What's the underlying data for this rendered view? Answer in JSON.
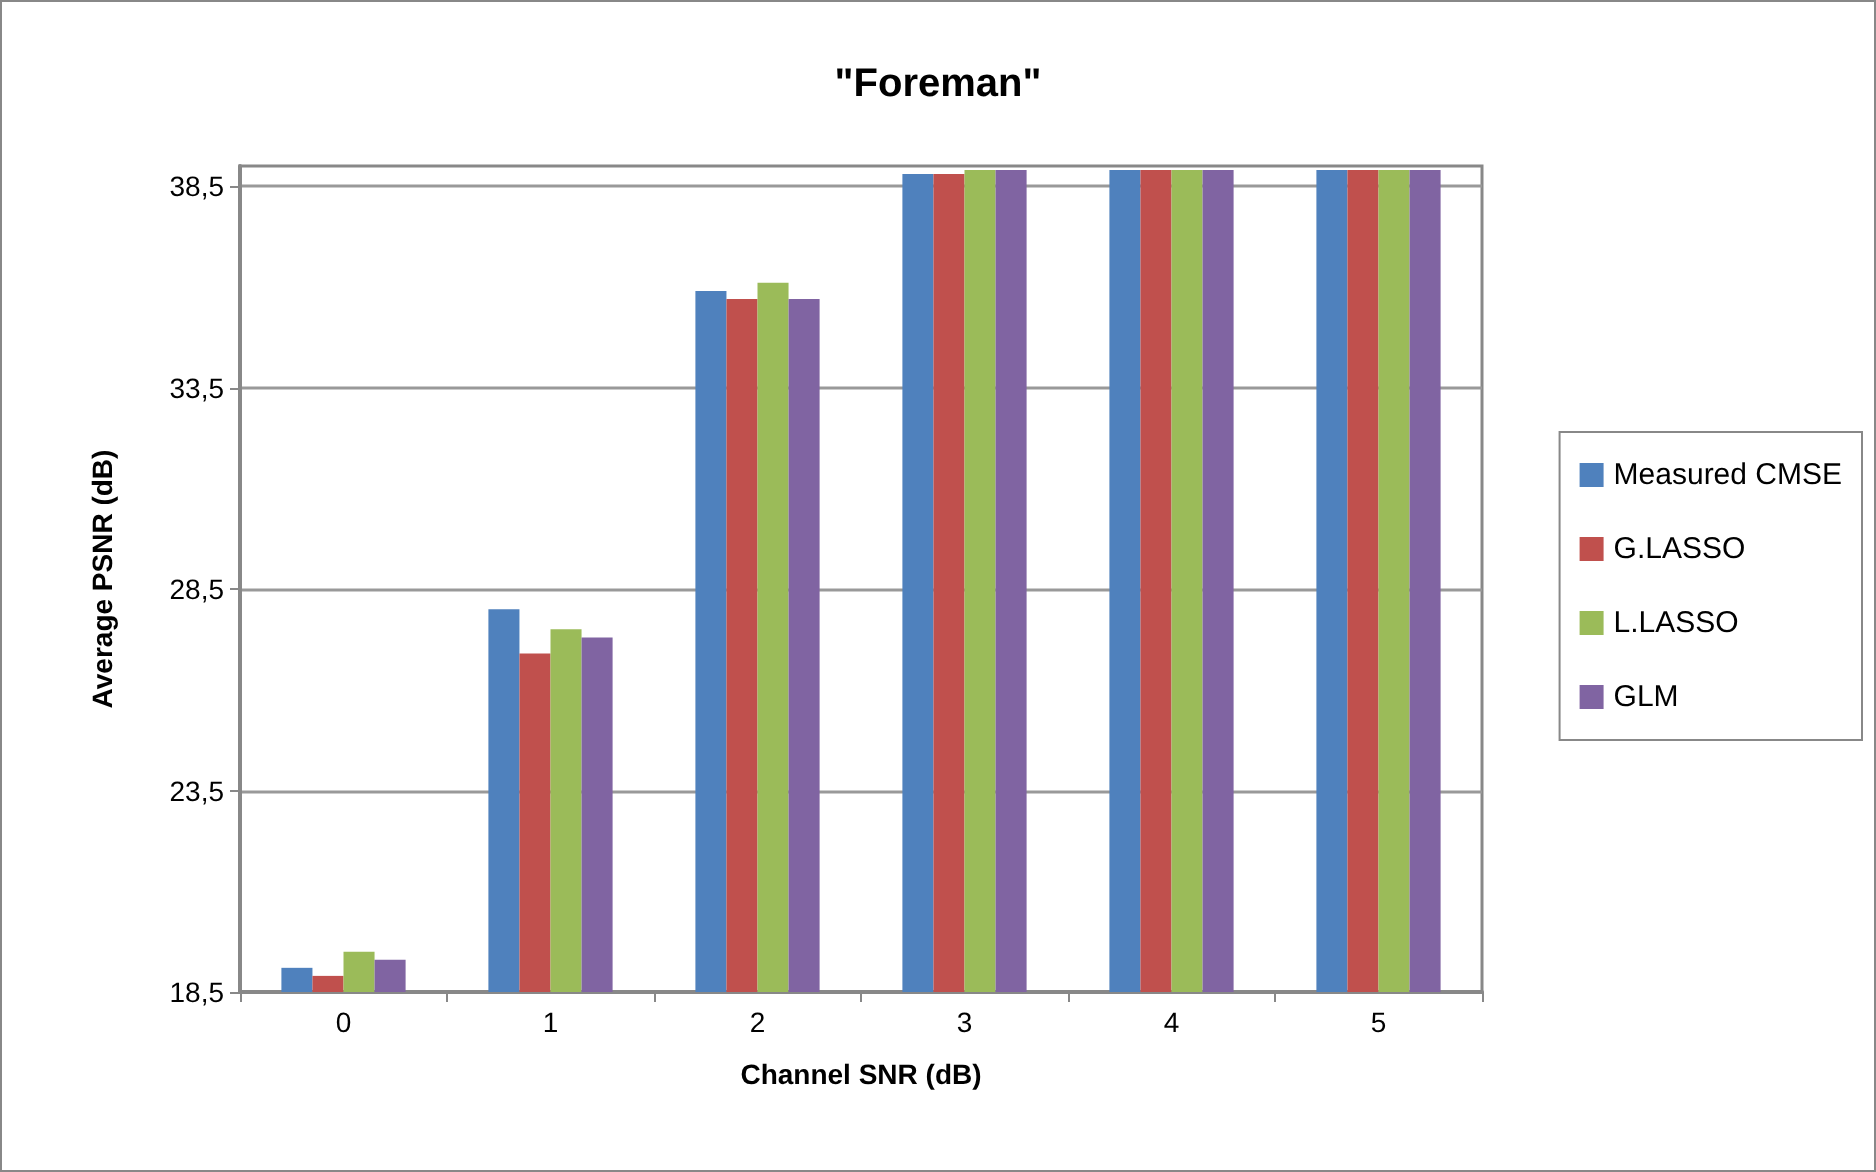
{
  "chart_data": {
    "type": "bar",
    "title": "\"Foreman\"",
    "xlabel": "Channel SNR (dB)",
    "ylabel": "Average PSNR (dB)",
    "categories": [
      "0",
      "1",
      "2",
      "3",
      "4",
      "5"
    ],
    "series": [
      {
        "name": "Measured CMSE",
        "color": "#4f81bd",
        "values": [
          19.1,
          28.0,
          35.9,
          38.8,
          38.9,
          38.9
        ]
      },
      {
        "name": "G.LASSO",
        "color": "#c0504d",
        "values": [
          18.9,
          26.9,
          35.7,
          38.8,
          38.9,
          38.9
        ]
      },
      {
        "name": "L.LASSO",
        "color": "#9bbb59",
        "values": [
          19.5,
          27.5,
          36.1,
          38.9,
          38.9,
          38.9
        ]
      },
      {
        "name": "GLM",
        "color": "#8064a2",
        "values": [
          19.3,
          27.3,
          35.7,
          38.9,
          38.9,
          38.9
        ]
      }
    ],
    "ylim": [
      18.5,
      39.0
    ],
    "yticks": [
      {
        "value": 18.5,
        "label": "18,5"
      },
      {
        "value": 23.5,
        "label": "23,5"
      },
      {
        "value": 28.5,
        "label": "28,5"
      },
      {
        "value": 33.5,
        "label": "33,5"
      },
      {
        "value": 38.5,
        "label": "38,5"
      }
    ],
    "grid": "y",
    "legend": "right"
  }
}
